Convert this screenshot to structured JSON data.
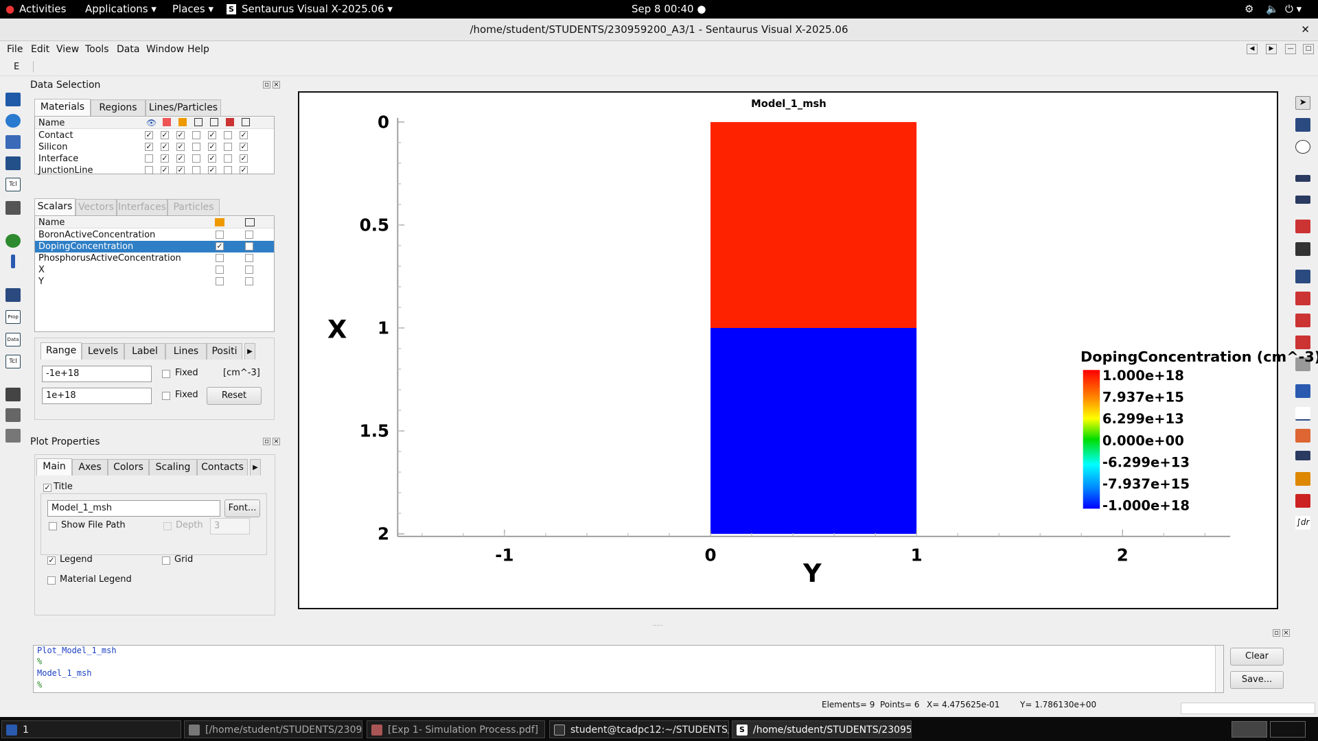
{
  "topbar": {
    "activities": "Activities",
    "applications": "Applications",
    "places": "Places",
    "app_name": "Sentaurus Visual X-2025.06",
    "clock": "Sep 8  00:40"
  },
  "window": {
    "title": "/home/student/STUDENTS/230959200_A3/1 - Sentaurus Visual X-2025.06"
  },
  "menu": [
    "File",
    "Edit",
    "View",
    "Tools",
    "Data",
    "Window",
    "Help"
  ],
  "toolbar_letter": "E",
  "data_selection": {
    "title": "Data Selection",
    "tabs": [
      "Materials",
      "Regions",
      "Lines/Particles"
    ],
    "materials_header": "Name",
    "materials": [
      {
        "name": "Contact",
        "checks": [
          true,
          true,
          true,
          false,
          true,
          false,
          true
        ]
      },
      {
        "name": "Silicon",
        "checks": [
          true,
          true,
          true,
          false,
          true,
          false,
          true
        ]
      },
      {
        "name": "Interface",
        "checks": [
          false,
          true,
          true,
          false,
          true,
          false,
          true
        ]
      },
      {
        "name": "JunctionLine",
        "checks": [
          false,
          true,
          true,
          false,
          true,
          false,
          true
        ]
      }
    ],
    "scalar_tabs": [
      "Scalars",
      "Vectors",
      "Interfaces",
      "Particles"
    ],
    "scalars_header": "Name",
    "scalars": [
      {
        "name": "BoronActiveConcentration",
        "c1": false,
        "c2": false,
        "selected": false
      },
      {
        "name": "DopingConcentration",
        "c1": true,
        "c2": false,
        "selected": true
      },
      {
        "name": "PhosphorusActiveConcentration",
        "c1": false,
        "c2": false,
        "selected": false
      },
      {
        "name": "X",
        "c1": false,
        "c2": false,
        "selected": false
      },
      {
        "name": "Y",
        "c1": false,
        "c2": false,
        "selected": false
      }
    ],
    "range_tabs": [
      "Range",
      "Levels",
      "Label",
      "Lines",
      "Positi"
    ],
    "range_min": "-1e+18",
    "range_max": "1e+18",
    "fixed_label": "Fixed",
    "unit": "[cm^-3]",
    "reset": "Reset"
  },
  "plot_properties": {
    "title": "Plot Properties",
    "tabs": [
      "Main",
      "Axes",
      "Colors",
      "Scaling",
      "Contacts"
    ],
    "title_check_label": "Title",
    "title_value": "Model_1_msh",
    "font_btn": "Font...",
    "show_file_path": "Show File Path",
    "depth_label": "Depth",
    "depth_value": "3",
    "legend": "Legend",
    "grid": "Grid",
    "material_legend": "Material Legend"
  },
  "plot": {
    "title": "Model_1_msh",
    "xlabel": "Y",
    "ylabel": "X",
    "x_ticks": [
      "-1",
      "0",
      "1",
      "2"
    ],
    "y_ticks": [
      "0",
      "0.5",
      "1",
      "1.5",
      "2"
    ],
    "legend_title": "DopingConcentration (cm^-3)",
    "legend_values": [
      "1.000e+18",
      "7.937e+15",
      "6.299e+13",
      "0.000e+00",
      "-6.299e+13",
      "-7.937e+15",
      "-1.000e+18"
    ],
    "colors": {
      "p_region": "#ff2200",
      "n_region": "#0000ff"
    }
  },
  "chart_data": {
    "type": "heatmap",
    "title": "Model_1_msh",
    "xlabel": "Y",
    "ylabel": "X",
    "xlim": [
      -1.5,
      2.5
    ],
    "ylim": [
      0,
      2
    ],
    "regions": [
      {
        "y_range": [
          0,
          1
        ],
        "x_range": [
          0,
          1
        ],
        "value": 1e+18
      },
      {
        "y_range": [
          0,
          1
        ],
        "x_range": [
          1,
          2
        ],
        "value": -1e+18
      }
    ],
    "legend": "DopingConcentration (cm^-3)"
  },
  "console": {
    "lines": [
      "Plot_Model_1_msh",
      "%",
      "Model_1_msh",
      "%"
    ],
    "clear": "Clear",
    "save": "Save..."
  },
  "status": {
    "elements": "Elements= 9",
    "points": "Points= 6",
    "x": "X= 4.475625e-01",
    "y": "Y= 1.786130e+00"
  },
  "taskbar": {
    "workspace": "1",
    "items": [
      "[/home/student/STUDENTS/2309...",
      "[Exp 1- Simulation Process.pdf]",
      "student@tcadpc12:~/STUDENTS/...",
      "/home/student/STUDENTS/23095..."
    ]
  }
}
